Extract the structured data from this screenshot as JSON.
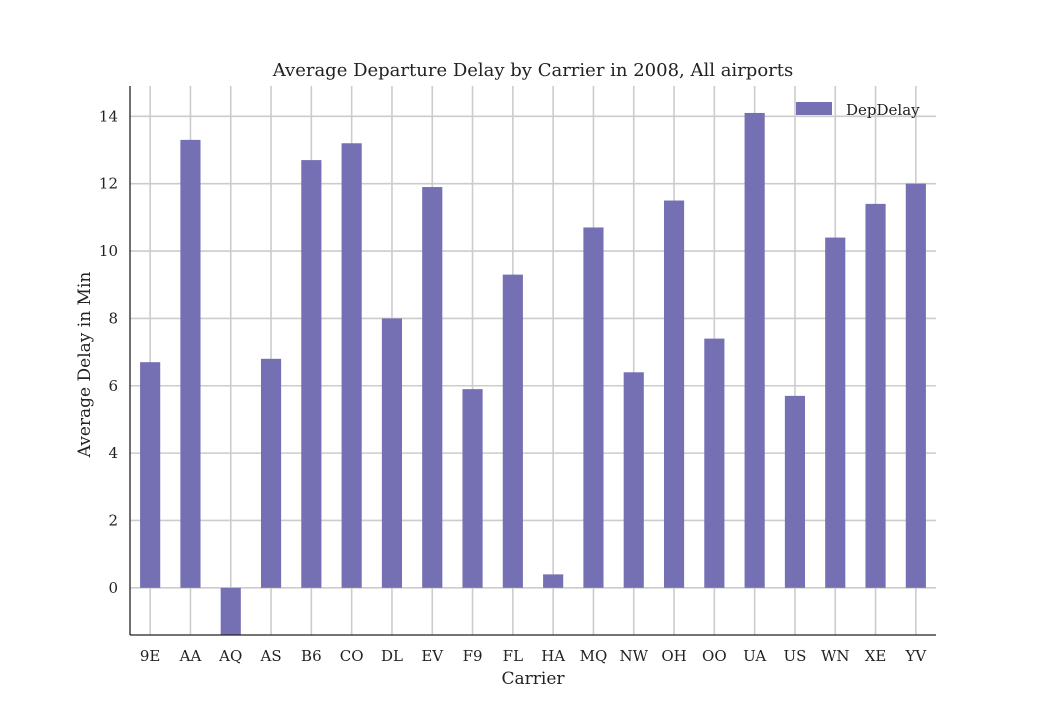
{
  "chart_data": {
    "type": "bar",
    "title": "Average Departure Delay by Carrier in 2008, All  airports",
    "xlabel": "Carrier",
    "ylabel": "Average Delay in Min",
    "categories": [
      "9E",
      "AA",
      "AQ",
      "AS",
      "B6",
      "CO",
      "DL",
      "EV",
      "F9",
      "FL",
      "HA",
      "MQ",
      "NW",
      "OH",
      "OO",
      "UA",
      "US",
      "WN",
      "XE",
      "YV"
    ],
    "series": [
      {
        "name": "DepDelay",
        "color": "#7570b3",
        "values": [
          6.7,
          13.3,
          -1.4,
          6.8,
          12.7,
          13.2,
          8.0,
          11.9,
          5.9,
          9.3,
          0.4,
          10.7,
          6.4,
          11.5,
          7.4,
          14.1,
          5.7,
          10.4,
          11.4,
          12.0
        ]
      }
    ],
    "ylim": [
      -1.4,
      14.9
    ],
    "yticks": [
      0,
      2,
      4,
      6,
      8,
      10,
      12,
      14
    ],
    "ytick_labels": [
      "0",
      "2",
      "4",
      "6",
      "8",
      "10",
      "12",
      "14"
    ],
    "grid": true,
    "legend_position": "top-right"
  }
}
